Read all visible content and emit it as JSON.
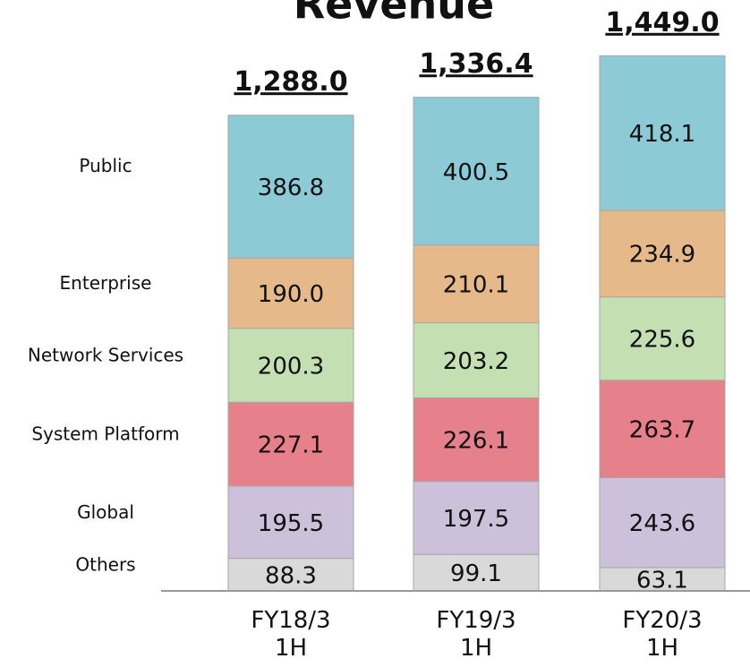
{
  "chart_data": {
    "type": "stacked_bar",
    "title": "Revenue",
    "categories": [
      "FY18/3 1H",
      "FY19/3 1H",
      "FY20/3 1H"
    ],
    "series": [
      {
        "name": "Others",
        "color": "#d9d9d9",
        "values": [
          88.3,
          99.1,
          63.1
        ],
        "value_labels": [
          "88.3",
          "99.1",
          "63.1"
        ]
      },
      {
        "name": "Global",
        "color": "#ccc0da",
        "values": [
          195.5,
          197.5,
          243.6
        ],
        "value_labels": [
          "195.5",
          "197.5",
          "243.6"
        ]
      },
      {
        "name": "System Platform",
        "color": "#e6808a",
        "values": [
          227.1,
          226.1,
          263.7
        ],
        "value_labels": [
          "227.1",
          "226.1",
          "263.7"
        ]
      },
      {
        "name": "Network Services",
        "color": "#c4e0b2",
        "values": [
          200.3,
          203.2,
          225.6
        ],
        "value_labels": [
          "200.3",
          "203.2",
          "225.6"
        ]
      },
      {
        "name": "Enterprise",
        "color": "#e6b98a",
        "values": [
          190.0,
          210.1,
          234.9
        ],
        "value_labels": [
          "190.0",
          "210.1",
          "234.9"
        ]
      },
      {
        "name": "Public",
        "color": "#8ccbd6",
        "values": [
          386.8,
          400.5,
          418.1
        ],
        "value_labels": [
          "386.8",
          "400.5",
          "418.1"
        ]
      }
    ],
    "totals": [
      1288.0,
      1336.4,
      1449.0
    ],
    "total_labels": [
      "1,288.0",
      "1,336.4",
      "1,449.0"
    ],
    "ylim": [
      0,
      1600
    ]
  }
}
